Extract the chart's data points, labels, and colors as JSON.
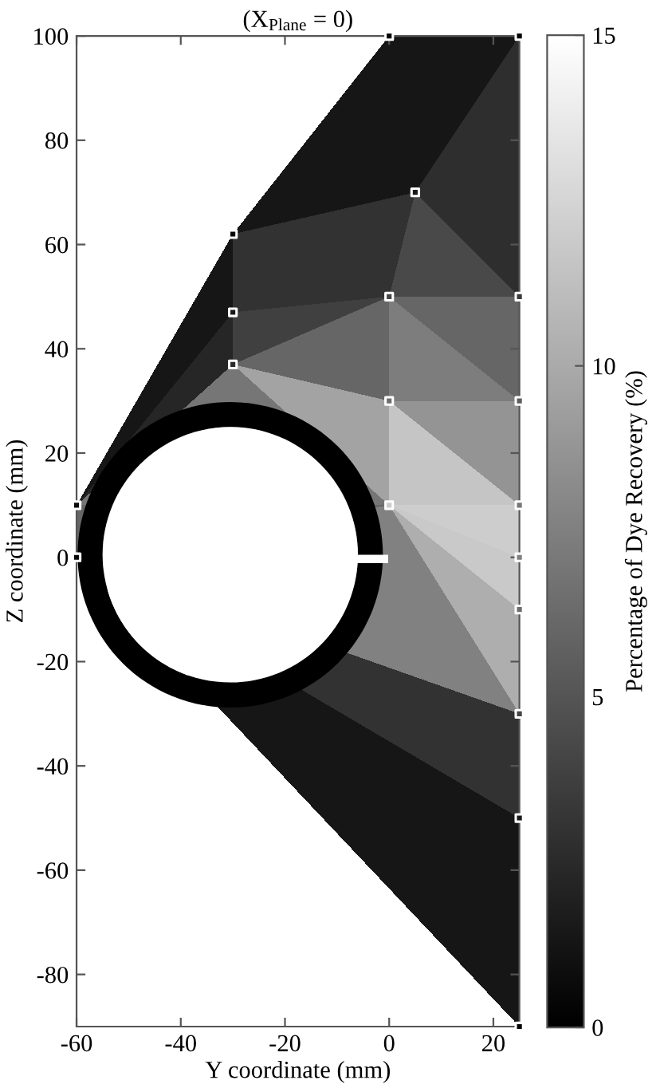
{
  "chart_data": {
    "type": "scatter",
    "title": "(X$_{Plane}$ = 0)",
    "xlabel": "Y coordinate (mm)",
    "ylabel": "Z coordinate (mm)",
    "clabel": "Percentage of Dye Recovery (%)",
    "x": [
      0,
      25,
      5,
      -30,
      0,
      25,
      -30,
      -30,
      0,
      25,
      -60,
      0,
      25,
      -60,
      25,
      25,
      25,
      25,
      25
    ],
    "values": [
      100,
      100,
      70,
      62,
      50,
      50,
      47,
      37,
      30,
      30,
      10,
      10,
      10,
      0,
      0,
      -10,
      -30,
      -50,
      -90
    ],
    "cvalues": [
      0.3,
      0.3,
      1.5,
      0.3,
      4,
      3.5,
      1.5,
      2.5,
      6.5,
      5.5,
      0.5,
      12,
      7,
      0.5,
      7.5,
      6.5,
      4,
      1.5,
      0.2
    ],
    "color": "#ffffff",
    "marker": "square",
    "xlim": [
      -60,
      25
    ],
    "ylim": [
      -90,
      100
    ],
    "xticks": [
      -60,
      -40,
      -20,
      0,
      20
    ],
    "yticks": [
      -80,
      -60,
      -40,
      -20,
      0,
      20,
      40,
      60,
      80,
      100
    ],
    "clim": [
      0,
      15
    ],
    "cticks": [
      0,
      5,
      10,
      15
    ],
    "grid": false,
    "legend": false
  }
}
